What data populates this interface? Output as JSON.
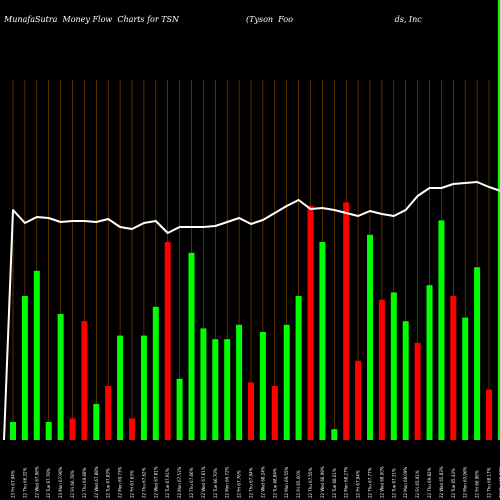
{
  "title_left": "MunafaSutra  Money Flow  Charts for TSN",
  "title_right": "(Tyson  Foo                                        ds, Inc",
  "chart_data": {
    "type": "bar",
    "title": "MunafaSutra  Money Flow  Charts for TSN (Tyson Foods, Inc",
    "categories": [
      "23 Fri 67.94%",
      "22 Thu 66.32%",
      "22 Wed 67.96%",
      "22 Tue 67.76%",
      "23 Mon 67.90%",
      "22 Fri 66.78%",
      "22 Thu 69.68%",
      "22 Wed 67.88%",
      "22 Tue 67.83%",
      "22 Mon 69.73%",
      "22 Fri 67.63%",
      "22 Thu 67.62%",
      "22 Wed 67.81%",
      "22 Tue 67.91%",
      "22 Mon 67.51%",
      "22 Thu 67.66%",
      "22 Wed 67.61%",
      "22 Tue 66.70%",
      "22 Mon 66.72%",
      "22 Fri 67.76%",
      "22 Thu 67.94%",
      "22 Wed 68.24%",
      "22 Tue 68.84%",
      "22 Mon 69.55%",
      "22 Fri 65.00%",
      "22 Thu 67.55%",
      "22 Wed 66.99%",
      "22 Tue 68.01%",
      "22 Mon 68.27%",
      "22 Fri 67.94%",
      "22 Thu 67.77%",
      "22 Wed 68.00%",
      "22 Tue 67.31%",
      "22 Mon 68.09%",
      "22 Fri 65.91%",
      "22 Thu 69.82%",
      "22 Wed 65.83%",
      "22 Tue 65.43%",
      "22 Mon 63.96%",
      "22 Fri 66.96%",
      "22 Thu 68.17%",
      "22 Wed 66.93%",
      "22 Tue 68.61%",
      "22 Mon 67.06%"
    ],
    "values": [
      5,
      40,
      47,
      5,
      35,
      6,
      33,
      10,
      15,
      29,
      6,
      29,
      37,
      55,
      17,
      52,
      31,
      28,
      28,
      32,
      16,
      30,
      15,
      32,
      40,
      65,
      55,
      3,
      66,
      22,
      57,
      39,
      41,
      33,
      27,
      43,
      61,
      40,
      34,
      48,
      14,
      99,
      21,
      6
    ],
    "colors": [
      "green",
      "green",
      "green",
      "green",
      "green",
      "red",
      "red",
      "green",
      "red",
      "green",
      "red",
      "green",
      "green",
      "red",
      "green",
      "green",
      "green",
      "green",
      "green",
      "green",
      "red",
      "green",
      "red",
      "green",
      "green",
      "red",
      "green",
      "green",
      "red",
      "red",
      "green",
      "red",
      "green",
      "green",
      "red",
      "green",
      "green",
      "red",
      "green",
      "green",
      "red",
      "green",
      "red",
      "green"
    ],
    "price_line": [
      210,
      223,
      217,
      218,
      222,
      221,
      221,
      222,
      219,
      227,
      229,
      223,
      221,
      233,
      227,
      227,
      227,
      226,
      222,
      218,
      224,
      220,
      213,
      206,
      200,
      209,
      208,
      210,
      213,
      216,
      211,
      214,
      216,
      210,
      196,
      188,
      188,
      184,
      183,
      182,
      187,
      191,
      195,
      190
    ],
    "price_line_note": "",
    "bar_colors": {
      "green": "#00ff00",
      "red": "#ff0000"
    },
    "line_color": "#ffffff",
    "grid_color": "#ff8c00",
    "background": "#000000",
    "grid": true,
    "legend": "none"
  }
}
